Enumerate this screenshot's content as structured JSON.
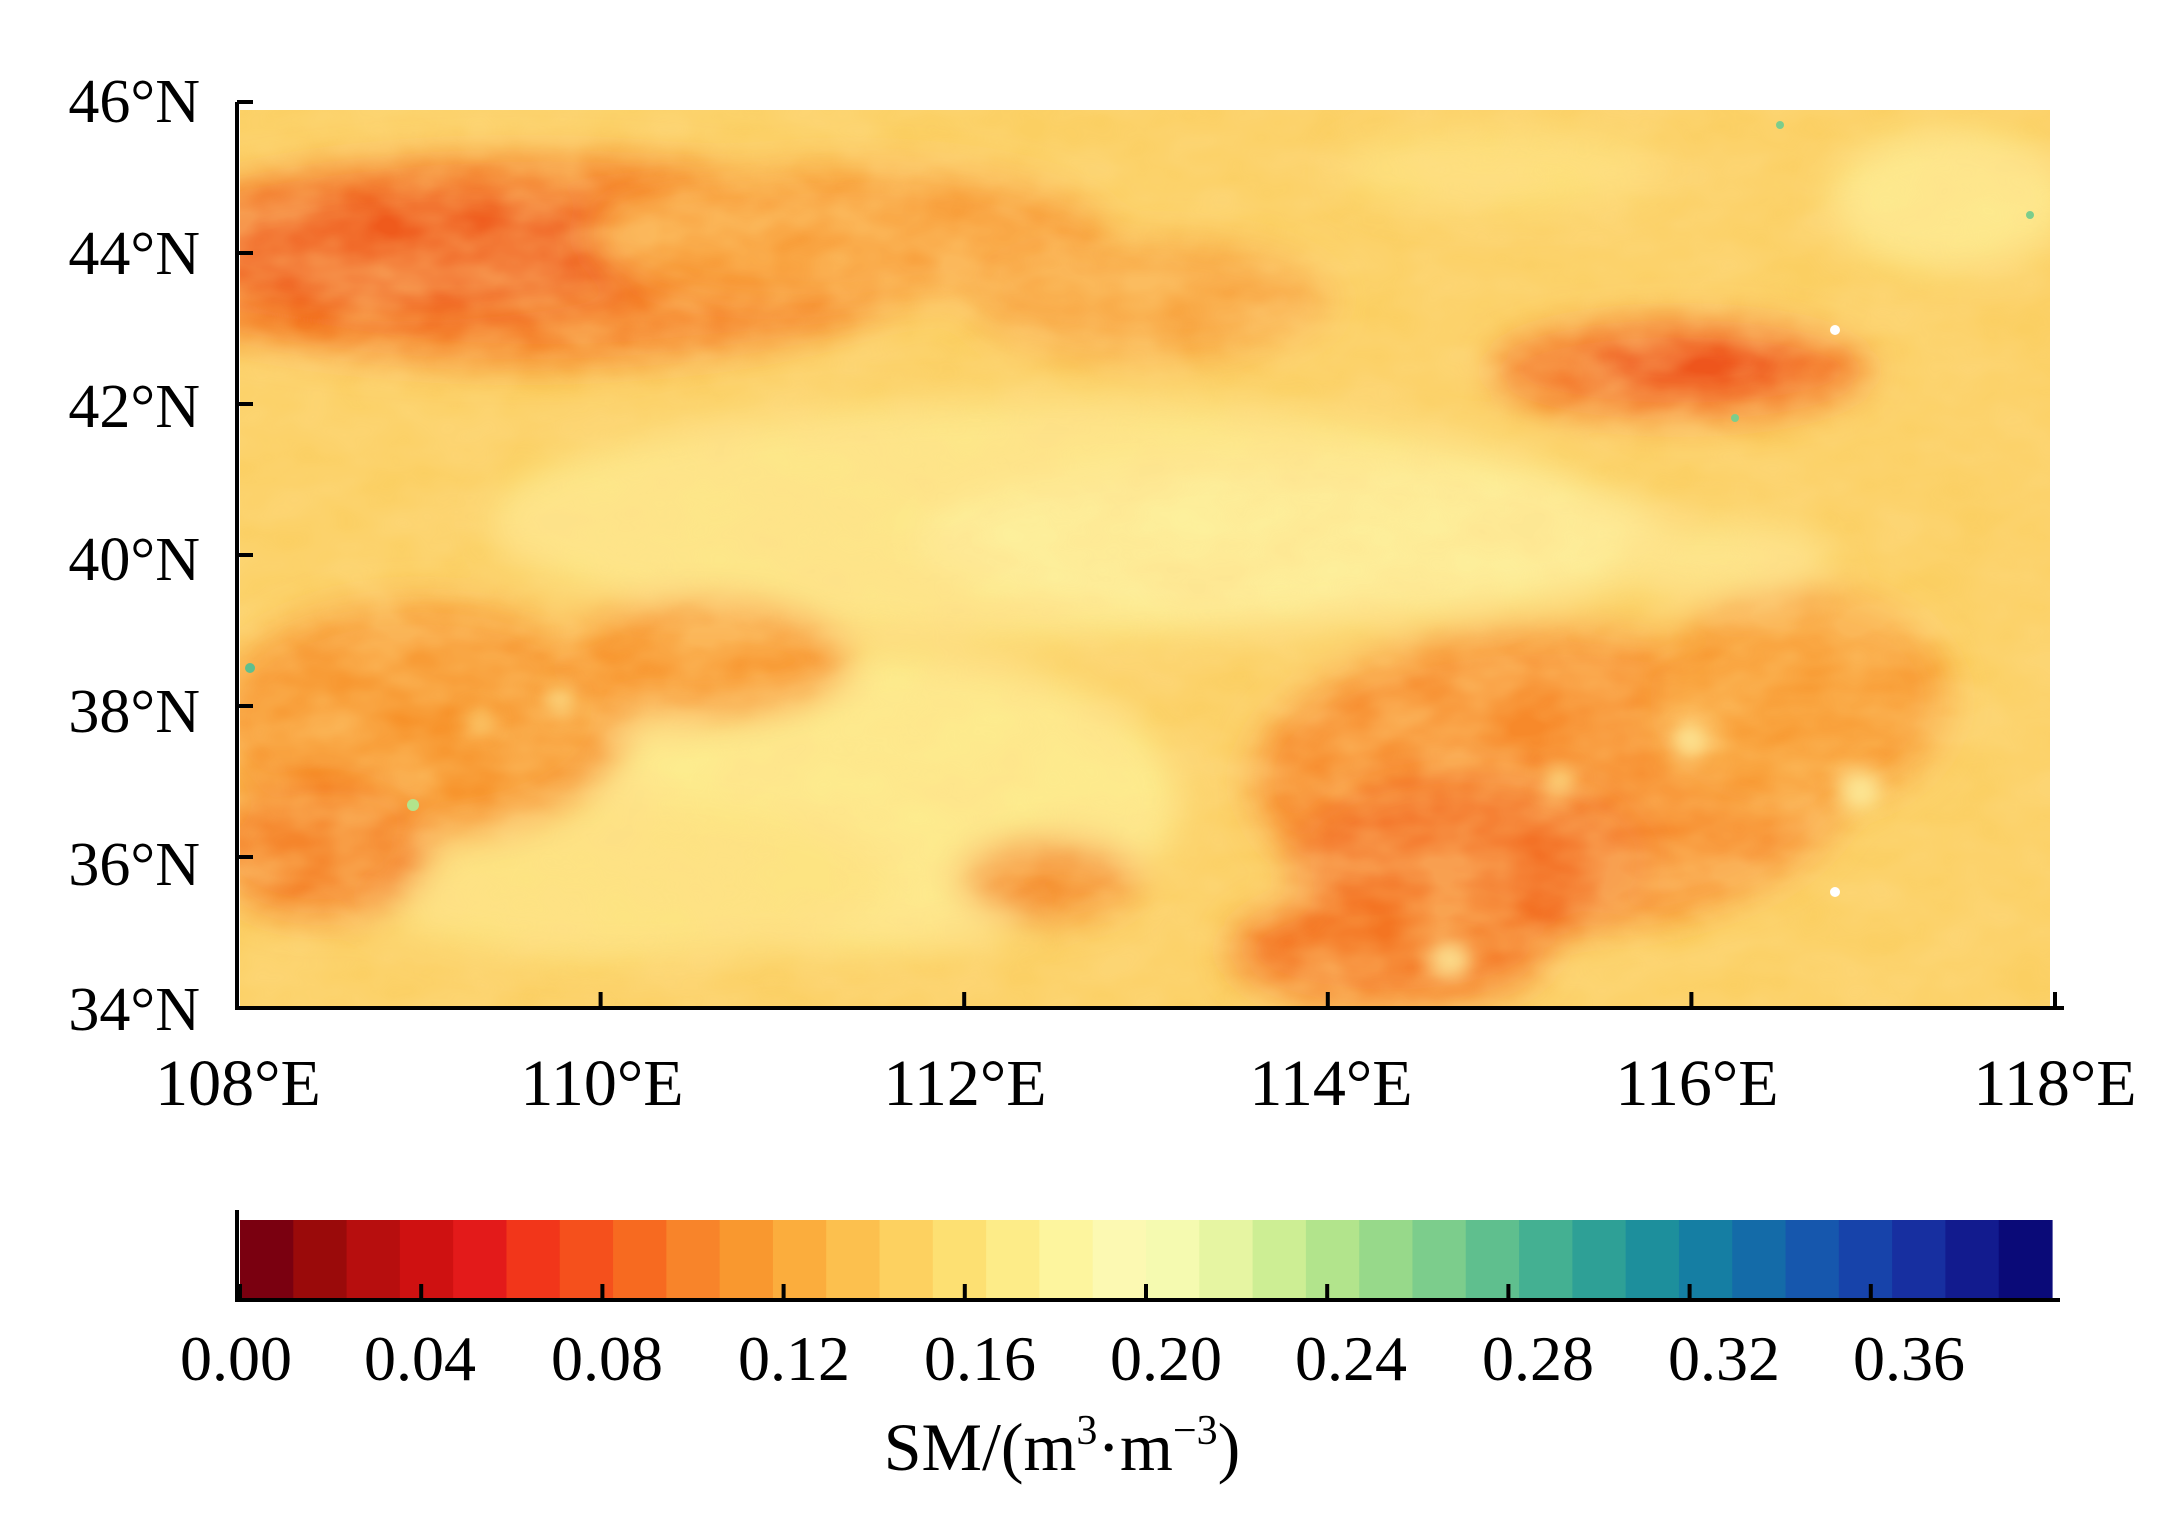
{
  "map": {
    "lat_labels": [
      "46°N",
      "44°N",
      "42°N",
      "40°N",
      "38°N",
      "36°N",
      "34°N"
    ],
    "lon_labels": [
      "108°E",
      "110°E",
      "112°E",
      "114°E",
      "116°E",
      "118°E"
    ],
    "lat_range": [
      34,
      46
    ],
    "lon_range": [
      108,
      118
    ]
  },
  "colorbar": {
    "range": [
      0.0,
      0.4
    ],
    "tick_labels": [
      "0.00",
      "0.04",
      "0.08",
      "0.12",
      "0.16",
      "0.20",
      "0.24",
      "0.28",
      "0.32",
      "0.36"
    ],
    "label_text": "SM/(m",
    "label_sup1": "3",
    "label_mid": "·m",
    "label_sup2": "−3",
    "label_end": ")",
    "colors": [
      "#7a0010",
      "#9a0a0a",
      "#b70e0e",
      "#cf1111",
      "#e31a1a",
      "#f2361a",
      "#f5501c",
      "#f76a20",
      "#f8842a",
      "#f9982f",
      "#fbad3d",
      "#fcc04e",
      "#fdd160",
      "#fde072",
      "#fdec88",
      "#fdf59e",
      "#fcf9b2",
      "#f5fab0",
      "#e6f5a2",
      "#cdee94",
      "#b2e48c",
      "#97d98a",
      "#7ccd8c",
      "#5fbf8e",
      "#44b092",
      "#2ea096",
      "#1d8f9c",
      "#157ea3",
      "#146ba8",
      "#1657ad",
      "#1743aa",
      "#172fa0",
      "#121b8e",
      "#0a0a78"
    ]
  }
}
